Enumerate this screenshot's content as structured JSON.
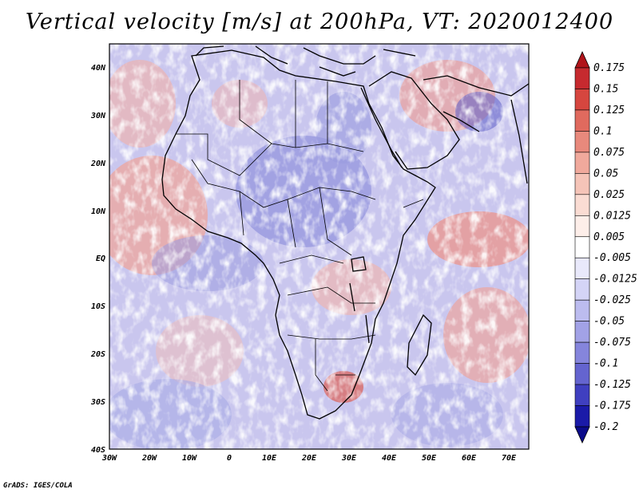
{
  "title": "Vertical velocity [m/s] at 200hPa, VT: 2020012400",
  "credit": "GrADS: IGES/COLA",
  "map": {
    "lat_labels": [
      "40N",
      "30N",
      "20N",
      "10N",
      "EQ",
      "10S",
      "20S",
      "30S",
      "40S"
    ],
    "lon_labels": [
      "30W",
      "20W",
      "10W",
      "0",
      "10E",
      "20E",
      "30E",
      "40E",
      "50E",
      "60E",
      "70E"
    ],
    "lon_range": [
      -30,
      75
    ],
    "lat_range": [
      -40,
      45
    ]
  },
  "colorbar": {
    "labels": [
      "0.175",
      "0.15",
      "0.125",
      "0.1",
      "0.075",
      "0.05",
      "0.025",
      "0.0125",
      "0.005",
      "-0.005",
      "-0.0125",
      "-0.025",
      "-0.05",
      "-0.075",
      "-0.1",
      "-0.125",
      "-0.175",
      "-0.2"
    ],
    "colors": [
      "#b0141a",
      "#c62a2f",
      "#d6463f",
      "#e06a5e",
      "#e8897c",
      "#f0a99c",
      "#f5c4b8",
      "#fadcd3",
      "#fdeee9",
      "#ffffff",
      "#e9e9fb",
      "#d4d4f6",
      "#bcbcef",
      "#a2a2e6",
      "#8585dc",
      "#6464cf",
      "#3f3fc0",
      "#1a1aa8",
      "#0b0b8a"
    ]
  }
}
